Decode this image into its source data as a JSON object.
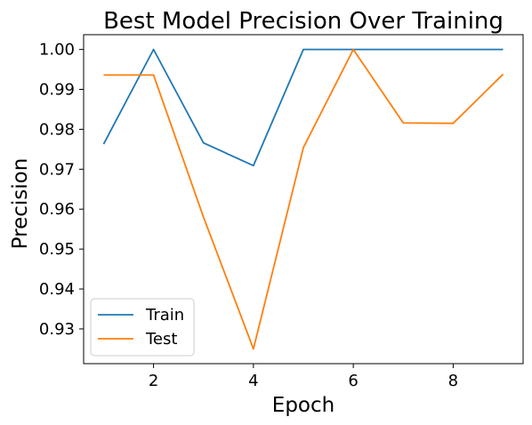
{
  "chart_data": {
    "type": "line",
    "title": "Best Model Precision Over Training",
    "xlabel": "Epoch",
    "ylabel": "Precision",
    "x": [
      1,
      2,
      3,
      4,
      5,
      6,
      7,
      8,
      9
    ],
    "xlim": [
      0.6,
      9.4
    ],
    "ylim": [
      0.9213,
      1.0037
    ],
    "xticks": [
      2,
      4,
      6,
      8
    ],
    "xtick_labels": [
      "2",
      "4",
      "6",
      "8"
    ],
    "yticks": [
      0.93,
      0.94,
      0.95,
      0.96,
      0.97,
      0.98,
      0.99,
      1.0
    ],
    "ytick_labels": [
      "0.93",
      "0.94",
      "0.95",
      "0.96",
      "0.97",
      "0.98",
      "0.99",
      "1.00"
    ],
    "grid": false,
    "legend_position": "lower-left",
    "series": [
      {
        "name": "Train",
        "color": "#1f77b4",
        "values": [
          0.9763,
          1.0,
          0.9766,
          0.9709,
          1.0,
          1.0,
          1.0,
          1.0,
          1.0
        ]
      },
      {
        "name": "Test",
        "color": "#ff7f0e",
        "values": [
          0.9936,
          0.9936,
          0.958,
          0.925,
          0.9754,
          1.0,
          0.9816,
          0.9815,
          0.9938
        ]
      }
    ]
  }
}
